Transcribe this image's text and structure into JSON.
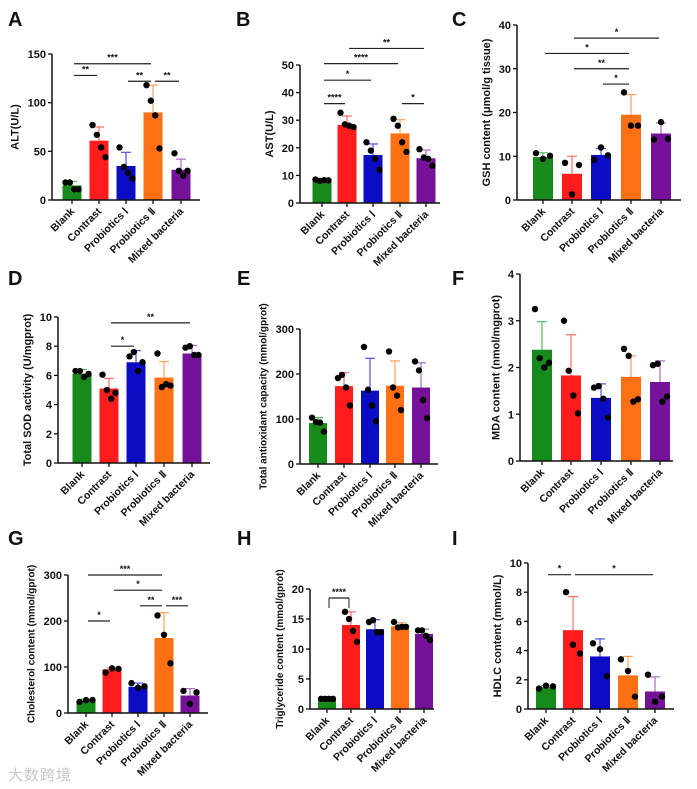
{
  "watermark": "大数跨境",
  "groups": [
    "Blank",
    "Contrast",
    "Probiotics Ⅰ",
    "Probiotics Ⅱ",
    "Mixed bacteria"
  ],
  "colors": {
    "Blank": "#178a1c",
    "Contrast": "#ff1c1c",
    "Probiotics Ⅰ": "#0c0cc4",
    "Probiotics Ⅱ": "#ff7014",
    "Mixed bacteria": "#76129a"
  },
  "error_colors": {
    "Blank": "#5cb85c",
    "Contrast": "#ff6b6b",
    "Probiotics Ⅰ": "#5050e0",
    "Probiotics Ⅱ": "#ff9f60",
    "Mixed bacteria": "#a86cc4"
  },
  "chart_data": [
    {
      "panel": "A",
      "type": "bar",
      "ylabel": "ALT(U/L)",
      "ylim": [
        0,
        150
      ],
      "yticks": [
        0,
        50,
        100,
        150
      ],
      "categories": [
        "Blank",
        "Contrast",
        "Probiotics Ⅰ",
        "Probiotics Ⅱ",
        "Mixed bacteria"
      ],
      "values": [
        15,
        61,
        35,
        90,
        31
      ],
      "sd": [
        4,
        14,
        14,
        28,
        11
      ],
      "points": [
        [
          18,
          18,
          11,
          11
        ],
        [
          77,
          67,
          54,
          44
        ],
        [
          54,
          34,
          28,
          22
        ],
        [
          118,
          102,
          87,
          53
        ],
        [
          48,
          30,
          25,
          30
        ]
      ],
      "significance": [
        {
          "from": 0,
          "to": 1,
          "y": 128,
          "label": "**"
        },
        {
          "from": 0,
          "to": 3,
          "y": 140,
          "label": "***"
        },
        {
          "from": 2,
          "to": 3,
          "y": 122,
          "label": "**"
        },
        {
          "from": 3,
          "to": 4,
          "y": 122,
          "label": "**"
        }
      ]
    },
    {
      "panel": "B",
      "type": "bar",
      "ylabel": "AST(U/L)",
      "ylim": [
        0,
        50
      ],
      "yticks": [
        0,
        10,
        20,
        30,
        40,
        50
      ],
      "categories": [
        "Blank",
        "Contrast",
        "Probiotics Ⅰ",
        "Probiotics Ⅱ",
        "Mixed bacteria"
      ],
      "values": [
        8.3,
        28.3,
        17.4,
        25.2,
        16.2
      ],
      "sd": [
        0.5,
        3.2,
        4,
        5,
        3
      ],
      "points": [
        [
          8.5,
          8,
          8.3,
          8.2
        ],
        [
          32.7,
          28.5,
          28,
          27.5
        ],
        [
          22,
          19,
          16,
          12
        ],
        [
          30.5,
          28,
          22,
          18.5
        ],
        [
          19.5,
          16.5,
          16,
          13.5
        ]
      ],
      "significance": [
        {
          "from": 0,
          "to": 1,
          "y": 36,
          "label": "****"
        },
        {
          "from": 0,
          "to": 2,
          "y": 44.5,
          "label": "*"
        },
        {
          "from": 0,
          "to": 3,
          "y": 50.5,
          "label": "****"
        },
        {
          "from": 1,
          "to": 4,
          "y": 56,
          "label": "**"
        },
        {
          "from": 3,
          "to": 4,
          "y": 36,
          "label": "*"
        }
      ]
    },
    {
      "panel": "C",
      "type": "bar",
      "ylabel": "GSH content (μmol/g tissue)",
      "ylim": [
        0,
        40
      ],
      "yticks": [
        0,
        10,
        20,
        30,
        40
      ],
      "categories": [
        "Blank",
        "Contrast",
        "Probiotics Ⅰ",
        "Probiotics Ⅱ",
        "Mixed bacteria"
      ],
      "values": [
        9.8,
        6,
        10.3,
        19.5,
        15.2
      ],
      "sd": [
        1,
        4,
        1.5,
        4.6,
        2.4
      ],
      "points": [
        [
          10.7,
          9.4,
          10.1
        ],
        [
          8.5,
          1.3,
          8
        ],
        [
          9.2,
          12,
          10.2
        ],
        [
          24.6,
          17,
          17
        ],
        [
          13.8,
          17.8,
          14
        ]
      ],
      "significance": [
        {
          "from": 2,
          "to": 3,
          "y": 26.5,
          "label": "*"
        },
        {
          "from": 1,
          "to": 3,
          "y": 30,
          "label": "**"
        },
        {
          "from": 0,
          "to": 3,
          "y": 33.5,
          "label": "*"
        },
        {
          "from": 1,
          "to": 4,
          "y": 37,
          "label": "*"
        }
      ]
    },
    {
      "panel": "D",
      "type": "bar",
      "ylabel": "Total SOD activity (U/mgprot)",
      "ylim": [
        0,
        10
      ],
      "yticks": [
        0,
        2,
        4,
        6,
        8,
        10
      ],
      "categories": [
        "Blank",
        "Contrast",
        "Probiotics Ⅰ",
        "Probiotics Ⅱ",
        "Mixed bacteria"
      ],
      "values": [
        6.1,
        5.1,
        6.9,
        5.85,
        7.5
      ],
      "sd": [
        0.3,
        0.7,
        0.8,
        1.1,
        0.55
      ],
      "points": [
        [
          6.3,
          6.3,
          5.9,
          6.1
        ],
        [
          6.05,
          5,
          4.4,
          4.8
        ],
        [
          7.3,
          7.6,
          6.3,
          6.9
        ],
        [
          7.5,
          5.2,
          5.4,
          5.3
        ],
        [
          7.9,
          8,
          7.4,
          7.4
        ]
      ],
      "significance": [
        {
          "from": 1,
          "to": 2,
          "y": 8,
          "label": "*"
        },
        {
          "from": 1,
          "to": 4,
          "y": 9.6,
          "label": "**"
        }
      ]
    },
    {
      "panel": "E",
      "type": "bar",
      "ylabel": "Total antioxidant capacity (mmol/gprot)",
      "ylim": [
        0,
        300
      ],
      "yticks": [
        0,
        100,
        200,
        300
      ],
      "categories": [
        "Blank",
        "Contrast",
        "Probiotics Ⅰ",
        "Probiotics Ⅱ",
        "Mixed bacteria"
      ],
      "values": [
        91,
        173,
        163,
        174,
        170
      ],
      "sd": [
        12,
        30,
        72,
        55,
        55
      ],
      "points": [
        [
          103,
          93,
          92,
          72
        ],
        [
          191,
          198,
          170,
          130
        ],
        [
          260,
          165,
          130,
          95
        ],
        [
          250,
          170,
          152,
          120
        ],
        [
          228,
          208,
          142,
          102
        ]
      ],
      "significance": []
    },
    {
      "panel": "F",
      "type": "bar",
      "ylabel": "MDA content (nmol/mgprot)",
      "ylim": [
        0,
        4
      ],
      "yticks": [
        0,
        1,
        2,
        3,
        4
      ],
      "categories": [
        "Blank",
        "Contrast",
        "Probiotics Ⅰ",
        "Probiotics Ⅱ",
        "Mixed bacteria"
      ],
      "values": [
        2.38,
        1.83,
        1.35,
        1.8,
        1.69
      ],
      "sd": [
        0.6,
        0.87,
        0.3,
        0.45,
        0.45
      ],
      "points": [
        [
          3.25,
          2.2,
          2,
          2.1
        ],
        [
          3,
          1.93,
          1.4,
          1.02
        ],
        [
          1.57,
          1.6,
          1.33,
          0.93
        ],
        [
          2.4,
          2.25,
          1.27,
          1.32
        ],
        [
          2.05,
          2.08,
          1.27,
          1.38
        ]
      ],
      "significance": []
    },
    {
      "panel": "G",
      "type": "bar",
      "ylabel": "Cholesterol content (mmol/gprot)",
      "ylim": [
        0,
        300
      ],
      "yticks": [
        0,
        100,
        200,
        300
      ],
      "categories": [
        "Blank",
        "Contrast",
        "Probiotics Ⅰ",
        "Probiotics Ⅱ",
        "Mixed bacteria"
      ],
      "values": [
        27,
        95,
        57,
        163,
        38
      ],
      "sd": [
        3,
        3,
        8,
        55,
        15
      ],
      "points": [
        [
          24,
          28,
          28
        ],
        [
          88,
          97,
          96
        ],
        [
          65,
          55,
          58
        ],
        [
          212,
          170,
          108
        ],
        [
          48,
          20,
          45
        ]
      ],
      "significance": [
        {
          "from": 0,
          "to": 1,
          "y": 200,
          "label": "*"
        },
        {
          "from": 2,
          "to": 3,
          "y": 233,
          "label": "**"
        },
        {
          "from": 3,
          "to": 4,
          "y": 233,
          "label": "***"
        },
        {
          "from": 1,
          "to": 3,
          "y": 267,
          "label": "*"
        },
        {
          "from": 0,
          "to": 3,
          "y": 300,
          "label": "***"
        }
      ]
    },
    {
      "panel": "H",
      "type": "bar",
      "ylabel": "Triglyceride content (mmol/gprot)",
      "ylim": [
        0,
        20
      ],
      "yticks": [
        0,
        5,
        10,
        15,
        20
      ],
      "categories": [
        "Blank",
        "Contrast",
        "Probiotics Ⅰ",
        "Probiotics Ⅱ",
        "Mixed bacteria"
      ],
      "values": [
        1.7,
        14,
        13.3,
        13.8,
        12.5
      ],
      "sd": [
        0.2,
        2.2,
        1.6,
        0.6,
        0.8
      ],
      "points": [
        [
          1.7,
          1.7,
          1.7,
          1.7
        ],
        [
          16.2,
          15,
          13,
          11.2
        ],
        [
          14.5,
          14.8,
          12.8,
          12.8
        ],
        [
          14.5,
          13.6,
          13.7,
          13.7
        ],
        [
          13.1,
          13.1,
          12.2,
          11.5
        ]
      ],
      "significance": [
        {
          "from": 0,
          "to": 1,
          "y": 18.5,
          "label": "****",
          "bracket": true
        }
      ]
    },
    {
      "panel": "I",
      "type": "bar",
      "ylabel": "HDLC content (mmol/L)",
      "ylim": [
        0,
        10
      ],
      "yticks": [
        0,
        2,
        4,
        6,
        8,
        10
      ],
      "categories": [
        "Blank",
        "Contrast",
        "Probiotics Ⅰ",
        "Probiotics Ⅱ",
        "Mixed bacteria"
      ],
      "values": [
        1.5,
        5.4,
        3.6,
        2.3,
        1.2
      ],
      "sd": [
        0.1,
        2.3,
        1.2,
        1.3,
        1
      ],
      "points": [
        [
          1.4,
          1.6,
          1.55
        ],
        [
          8,
          4.4,
          3.8
        ],
        [
          4.5,
          4.1,
          2.25
        ],
        [
          3.4,
          2.6,
          0.85
        ],
        [
          2.35,
          0.5,
          0.85
        ]
      ],
      "significance": [
        {
          "from": 0,
          "to": 1,
          "y": 9.2,
          "label": "*"
        },
        {
          "from": 1,
          "to": 4,
          "y": 9.2,
          "label": "*"
        }
      ]
    }
  ]
}
